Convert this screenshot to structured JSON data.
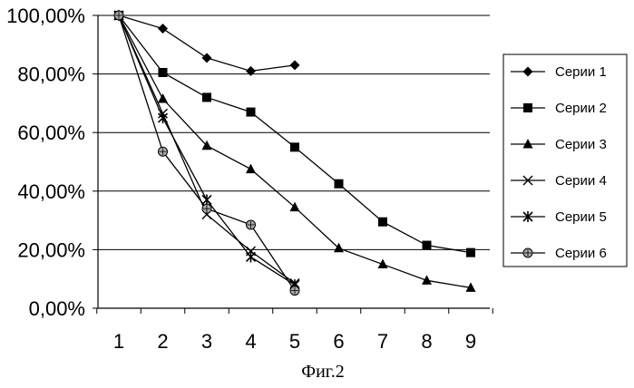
{
  "chart_data": {
    "type": "line",
    "caption": "Фиг.2",
    "x": [
      1,
      2,
      3,
      4,
      5,
      6,
      7,
      8,
      9
    ],
    "x_tick_labels": [
      "1",
      "2",
      "3",
      "4",
      "5",
      "6",
      "7",
      "8",
      "9"
    ],
    "y_tick_labels": [
      "0,00%",
      "20,00%",
      "40,00%",
      "60,00%",
      "80,00%",
      "100,00%"
    ],
    "ylim": [
      0,
      100
    ],
    "y_unit": "%",
    "grid": "horizontal",
    "legend_position": "right",
    "series": [
      {
        "name": "Серии 1",
        "marker": "diamond",
        "x": [
          1,
          2,
          3,
          4,
          5
        ],
        "values": [
          100,
          95.5,
          85.5,
          81,
          83
        ]
      },
      {
        "name": "Серии 2",
        "marker": "square",
        "x": [
          1,
          2,
          3,
          4,
          5,
          6,
          7,
          8,
          9
        ],
        "values": [
          100,
          80.5,
          72,
          67,
          55,
          42.5,
          29.5,
          21.5,
          19
        ]
      },
      {
        "name": "Серии 3",
        "marker": "triangle",
        "x": [
          1,
          2,
          3,
          4,
          5,
          6,
          7,
          8,
          9
        ],
        "values": [
          100,
          71.5,
          55.5,
          47.5,
          34.5,
          20.5,
          15,
          9.5,
          7
        ]
      },
      {
        "name": "Серии 4",
        "marker": "x",
        "x": [
          1,
          2,
          3,
          4,
          5
        ],
        "values": [
          100,
          66.5,
          32,
          19.5,
          8.5
        ]
      },
      {
        "name": "Серии 5",
        "marker": "asterisk",
        "x": [
          1,
          2,
          3,
          4,
          5
        ],
        "values": [
          100,
          65,
          37,
          17.5,
          8
        ]
      },
      {
        "name": "Серии 6",
        "marker": "circle",
        "x": [
          1,
          2,
          3,
          4,
          5
        ],
        "values": [
          100,
          53.5,
          34,
          28.5,
          6
        ]
      }
    ]
  }
}
